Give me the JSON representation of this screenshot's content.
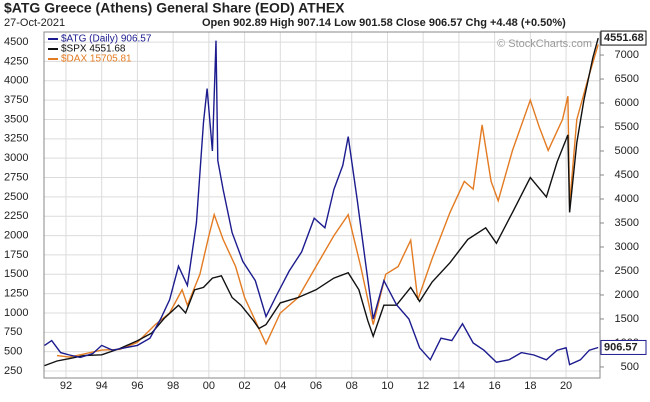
{
  "chart_data": {
    "type": "line",
    "title": "$ATG Greece (Athens) General Share (EOD) ATHEX",
    "date": "27-Oct-2021",
    "quote": "Open 902.89 High 907.14 Low 901.58 Close 906.57 Chg +4.48 (+0.50%)",
    "watermark": "© StockCharts.com",
    "xlim": [
      1990.77,
      2021.9
    ],
    "xticks": [
      {
        "value": 1992,
        "label": "92"
      },
      {
        "value": 1994,
        "label": "94"
      },
      {
        "value": 1996,
        "label": "96"
      },
      {
        "value": 1998,
        "label": "98"
      },
      {
        "value": 2000,
        "label": "00"
      },
      {
        "value": 2002,
        "label": "02"
      },
      {
        "value": 2004,
        "label": "04"
      },
      {
        "value": 2006,
        "label": "06"
      },
      {
        "value": 2008,
        "label": "08"
      },
      {
        "value": 2010,
        "label": "10"
      },
      {
        "value": 2012,
        "label": "12"
      },
      {
        "value": 2014,
        "label": "14"
      },
      {
        "value": 2016,
        "label": "16"
      },
      {
        "value": 2018,
        "label": "18"
      },
      {
        "value": 2020,
        "label": "20"
      }
    ],
    "ylim": [
      160,
      4630
    ],
    "yticks": [
      250,
      500,
      750,
      1000,
      1250,
      1500,
      1750,
      2000,
      2250,
      2500,
      2750,
      3000,
      3250,
      3500,
      3750,
      4000,
      4250,
      4500
    ],
    "y2lim": [
      270,
      7480
    ],
    "y2ticks": [
      500,
      1000,
      1500,
      2000,
      2500,
      3000,
      3500,
      4000,
      4500,
      5000,
      5500,
      6000,
      6500,
      7000
    ],
    "grid": true,
    "series": [
      {
        "name": "$ATG (Daily) 906.57",
        "color": "#1c1c8f",
        "axis": "y2",
        "last_label": "906.57",
        "x": [
          1990.8,
          1991.2,
          1991.7,
          1992.2,
          1992.8,
          1993.5,
          1994.0,
          1994.6,
          1995.3,
          1996.0,
          1996.7,
          1997.3,
          1997.8,
          1998.3,
          1998.8,
          1999.3,
          1999.7,
          1999.9,
          2000.2,
          2000.4,
          2000.5,
          2000.8,
          2001.3,
          2001.9,
          2002.6,
          2003.2,
          2003.8,
          2004.5,
          2005.2,
          2005.9,
          2006.5,
          2007.0,
          2007.5,
          2007.8,
          2008.3,
          2008.8,
          2009.2,
          2009.8,
          2010.5,
          2011.2,
          2011.8,
          2012.4,
          2013.0,
          2013.6,
          2014.2,
          2014.8,
          2015.4,
          2016.1,
          2016.8,
          2017.5,
          2018.2,
          2018.9,
          2019.5,
          2020.0,
          2020.2,
          2020.8,
          2021.3,
          2021.8
        ],
        "values": [
          950,
          1050,
          800,
          750,
          700,
          780,
          950,
          850,
          900,
          950,
          1100,
          1500,
          1900,
          2600,
          2200,
          3500,
          5600,
          6300,
          5000,
          7300,
          4800,
          4200,
          3300,
          2700,
          2300,
          1550,
          2000,
          2500,
          2900,
          3600,
          3400,
          4200,
          4700,
          5300,
          4000,
          2600,
          1500,
          2300,
          1800,
          1500,
          900,
          650,
          1100,
          1050,
          1400,
          1000,
          850,
          600,
          650,
          800,
          750,
          650,
          850,
          900,
          550,
          650,
          850,
          906.57
        ]
      },
      {
        "name": "$SPX 4551.68",
        "color": "#111111",
        "axis": "y",
        "last_label": "4551.68",
        "x": [
          1990.8,
          1991.5,
          1992.2,
          1993.0,
          1994.0,
          1995.0,
          1996.0,
          1996.8,
          1997.5,
          1998.3,
          1998.7,
          1999.2,
          1999.7,
          2000.2,
          2000.7,
          2001.3,
          2001.8,
          2002.5,
          2002.8,
          2003.2,
          2004.0,
          2005.0,
          2006.0,
          2007.0,
          2007.8,
          2008.4,
          2008.9,
          2009.2,
          2009.8,
          2010.5,
          2011.3,
          2011.8,
          2012.5,
          2013.5,
          2014.5,
          2015.5,
          2016.1,
          2017.0,
          2018.0,
          2018.9,
          2019.5,
          2020.1,
          2020.2,
          2020.6,
          2021.0,
          2021.5,
          2021.8
        ],
        "values": [
          320,
          380,
          410,
          450,
          460,
          540,
          640,
          740,
          930,
          1100,
          1000,
          1300,
          1330,
          1450,
          1480,
          1200,
          1100,
          900,
          800,
          850,
          1130,
          1200,
          1300,
          1450,
          1520,
          1300,
          900,
          700,
          1100,
          1100,
          1330,
          1150,
          1400,
          1650,
          1950,
          2100,
          1900,
          2300,
          2750,
          2500,
          2950,
          3300,
          2300,
          3200,
          3750,
          4300,
          4551.68
        ]
      },
      {
        "name": "$DAX 15705.81",
        "color": "#e37b22",
        "axis": "y",
        "x": [
          1991.5,
          1992.2,
          1993.0,
          1994.0,
          1995.0,
          1996.0,
          1997.0,
          1997.8,
          1998.5,
          1998.8,
          1999.5,
          2000.0,
          2000.3,
          2000.8,
          2001.5,
          2002.0,
          2002.6,
          2003.2,
          2004.0,
          2005.0,
          2006.0,
          2007.0,
          2007.8,
          2008.5,
          2009.2,
          2009.9,
          2010.6,
          2011.3,
          2011.7,
          2012.5,
          2013.5,
          2014.3,
          2014.8,
          2015.3,
          2015.8,
          2016.2,
          2017.0,
          2018.0,
          2018.5,
          2019.0,
          2019.8,
          2020.1,
          2020.2,
          2020.6,
          2021.2,
          2021.8
        ],
        "values": [
          450,
          430,
          470,
          520,
          530,
          620,
          850,
          1000,
          1300,
          1100,
          1500,
          2000,
          2270,
          1950,
          1600,
          1200,
          900,
          600,
          1000,
          1200,
          1600,
          2000,
          2270,
          1600,
          850,
          1500,
          1600,
          1940,
          1170,
          1700,
          2300,
          2700,
          2600,
          3430,
          2700,
          2450,
          3100,
          3750,
          3400,
          3100,
          3500,
          3800,
          2400,
          3500,
          4000,
          4470
        ]
      }
    ]
  }
}
